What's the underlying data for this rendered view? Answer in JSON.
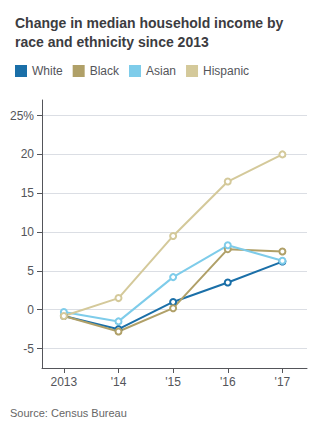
{
  "chart_data": {
    "type": "line",
    "title": "Change in median household income by race and ethnicity since 2013",
    "annotations": [
      "Source: Census Bureau"
    ],
    "x": [
      2013,
      2014,
      2015,
      2016,
      2017
    ],
    "series": [
      {
        "name": "White",
        "color": "#1a6fa8",
        "values": [
          -0.8,
          -2.5,
          1.0,
          3.5,
          6.2
        ]
      },
      {
        "name": "Black",
        "color": "#b0a068",
        "values": [
          -0.8,
          -2.8,
          0.2,
          7.8,
          7.5
        ]
      },
      {
        "name": "Asian",
        "color": "#7eccea",
        "values": [
          -0.3,
          -1.5,
          4.2,
          8.3,
          6.3
        ]
      },
      {
        "name": "Hispanic",
        "color": "#d4c99a",
        "values": [
          -0.8,
          1.5,
          9.5,
          16.5,
          20.0
        ]
      }
    ],
    "xlim": [
      2012.6,
      2017.45
    ],
    "xticks": [
      2013,
      {
        "value": 2014,
        "label": "'14"
      },
      {
        "value": 2015,
        "label": "'15"
      },
      {
        "value": 2016,
        "label": "'16"
      },
      {
        "value": 2017,
        "label": "'17"
      }
    ],
    "ylim": [
      -7.5,
      27
    ],
    "yticks": [
      -5,
      0,
      5,
      10,
      15,
      20,
      {
        "value": 25,
        "label": "25%"
      }
    ],
    "grid": "y",
    "legend": "upper left"
  }
}
